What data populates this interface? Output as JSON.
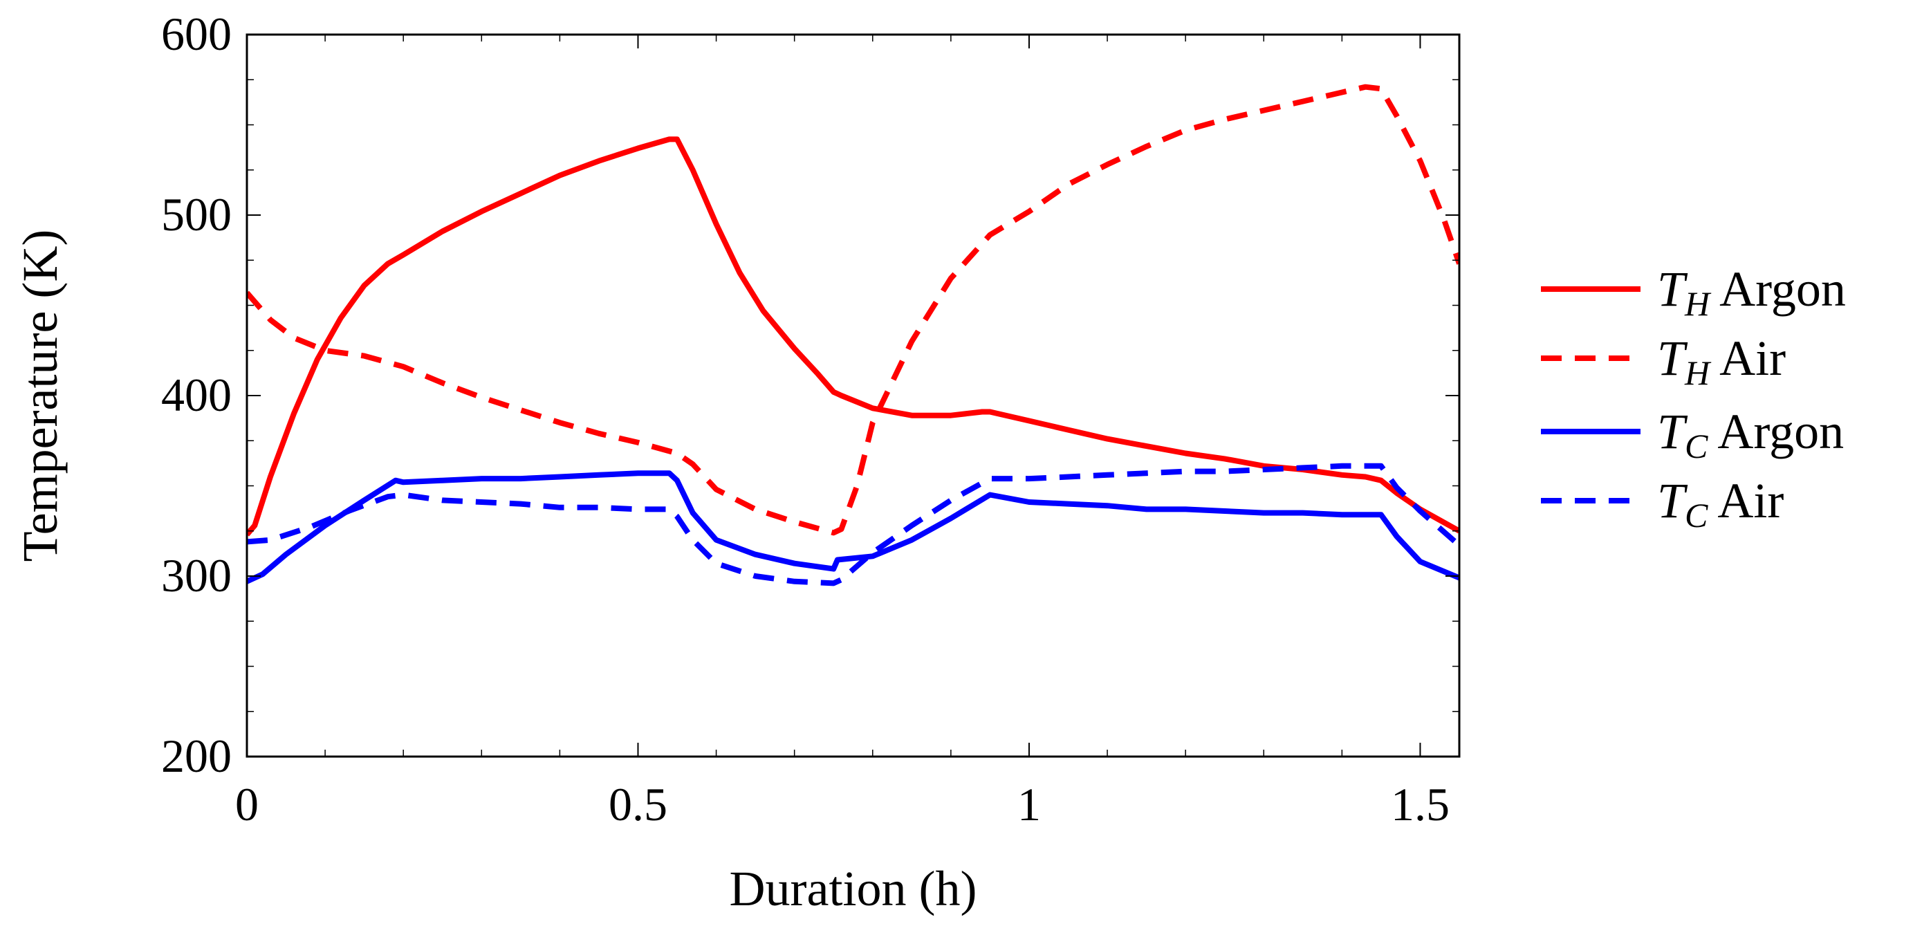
{
  "chart_data": {
    "type": "line",
    "title": "",
    "xlabel": "Duration (h)",
    "ylabel": "Temperature (K)",
    "xlim": [
      0,
      1.55
    ],
    "ylim": [
      200,
      600
    ],
    "x_ticks": [
      0,
      0.5,
      1,
      1.5
    ],
    "x_tick_labels": [
      "0",
      "0.5",
      "1",
      "1.5"
    ],
    "y_ticks": [
      200,
      300,
      400,
      500,
      600
    ],
    "y_tick_labels": [
      "200",
      "300",
      "400",
      "500",
      "600"
    ],
    "grid": false,
    "legend_position": "right",
    "series": [
      {
        "name": "T_H Argon",
        "legend_symbol": "T",
        "legend_subscript": "H",
        "legend_text": "Argon",
        "color": "#ff0000",
        "dash": "solid",
        "points": [
          [
            0,
            323
          ],
          [
            0.01,
            328
          ],
          [
            0.03,
            355
          ],
          [
            0.06,
            390
          ],
          [
            0.09,
            420
          ],
          [
            0.12,
            443
          ],
          [
            0.15,
            461
          ],
          [
            0.18,
            473
          ],
          [
            0.2,
            478
          ],
          [
            0.25,
            491
          ],
          [
            0.3,
            502
          ],
          [
            0.35,
            512
          ],
          [
            0.4,
            522
          ],
          [
            0.45,
            530
          ],
          [
            0.5,
            537
          ],
          [
            0.54,
            542
          ],
          [
            0.55,
            542
          ],
          [
            0.57,
            525
          ],
          [
            0.6,
            495
          ],
          [
            0.63,
            468
          ],
          [
            0.66,
            447
          ],
          [
            0.7,
            426
          ],
          [
            0.73,
            412
          ],
          [
            0.75,
            402
          ],
          [
            0.755,
            401
          ],
          [
            0.76,
            400
          ],
          [
            0.8,
            393
          ],
          [
            0.85,
            389
          ],
          [
            0.9,
            389
          ],
          [
            0.94,
            391
          ],
          [
            0.95,
            391
          ],
          [
            1,
            386
          ],
          [
            1.05,
            381
          ],
          [
            1.1,
            376
          ],
          [
            1.15,
            372
          ],
          [
            1.2,
            368
          ],
          [
            1.25,
            365
          ],
          [
            1.3,
            361
          ],
          [
            1.35,
            359
          ],
          [
            1.4,
            356
          ],
          [
            1.43,
            355
          ],
          [
            1.45,
            353
          ],
          [
            1.47,
            346
          ],
          [
            1.5,
            337
          ],
          [
            1.55,
            325
          ]
        ]
      },
      {
        "name": "T_H Air",
        "legend_symbol": "T",
        "legend_subscript": "H",
        "legend_text": "Air",
        "color": "#ff0000",
        "dash": "dashed",
        "points": [
          [
            0,
            457
          ],
          [
            0.03,
            442
          ],
          [
            0.06,
            432
          ],
          [
            0.1,
            425
          ],
          [
            0.15,
            422
          ],
          [
            0.2,
            416
          ],
          [
            0.25,
            407
          ],
          [
            0.3,
            399
          ],
          [
            0.35,
            392
          ],
          [
            0.4,
            385
          ],
          [
            0.45,
            379
          ],
          [
            0.5,
            374
          ],
          [
            0.55,
            368
          ],
          [
            0.57,
            362
          ],
          [
            0.6,
            348
          ],
          [
            0.65,
            337
          ],
          [
            0.7,
            330
          ],
          [
            0.75,
            324
          ],
          [
            0.76,
            326
          ],
          [
            0.78,
            350
          ],
          [
            0.8,
            385
          ],
          [
            0.85,
            430
          ],
          [
            0.9,
            465
          ],
          [
            0.95,
            489
          ],
          [
            1,
            502
          ],
          [
            1.05,
            517
          ],
          [
            1.1,
            528
          ],
          [
            1.15,
            538
          ],
          [
            1.2,
            547
          ],
          [
            1.25,
            553
          ],
          [
            1.3,
            558
          ],
          [
            1.35,
            563
          ],
          [
            1.4,
            568
          ],
          [
            1.43,
            571
          ],
          [
            1.45,
            570
          ],
          [
            1.47,
            555
          ],
          [
            1.5,
            530
          ],
          [
            1.53,
            498
          ],
          [
            1.55,
            473
          ]
        ]
      },
      {
        "name": "T_C Argon",
        "legend_symbol": "T",
        "legend_subscript": "C",
        "legend_text": "Argon",
        "color": "#0000ff",
        "dash": "solid",
        "points": [
          [
            0,
            297
          ],
          [
            0.02,
            301
          ],
          [
            0.05,
            312
          ],
          [
            0.1,
            328
          ],
          [
            0.15,
            342
          ],
          [
            0.19,
            353
          ],
          [
            0.2,
            352
          ],
          [
            0.25,
            353
          ],
          [
            0.3,
            354
          ],
          [
            0.35,
            354
          ],
          [
            0.4,
            355
          ],
          [
            0.45,
            356
          ],
          [
            0.5,
            357
          ],
          [
            0.54,
            357
          ],
          [
            0.55,
            353
          ],
          [
            0.57,
            335
          ],
          [
            0.6,
            320
          ],
          [
            0.65,
            312
          ],
          [
            0.7,
            307
          ],
          [
            0.75,
            304
          ],
          [
            0.755,
            309
          ],
          [
            0.8,
            311
          ],
          [
            0.85,
            320
          ],
          [
            0.9,
            332
          ],
          [
            0.95,
            345
          ],
          [
            1,
            341
          ],
          [
            1.05,
            340
          ],
          [
            1.1,
            339
          ],
          [
            1.15,
            337
          ],
          [
            1.2,
            337
          ],
          [
            1.25,
            336
          ],
          [
            1.3,
            335
          ],
          [
            1.35,
            335
          ],
          [
            1.4,
            334
          ],
          [
            1.45,
            334
          ],
          [
            1.47,
            322
          ],
          [
            1.5,
            308
          ],
          [
            1.55,
            299
          ]
        ]
      },
      {
        "name": "T_C Air",
        "legend_symbol": "T",
        "legend_subscript": "C",
        "legend_text": "Air",
        "color": "#0000ff",
        "dash": "dashed",
        "points": [
          [
            0,
            319
          ],
          [
            0.03,
            320
          ],
          [
            0.08,
            327
          ],
          [
            0.13,
            336
          ],
          [
            0.18,
            344
          ],
          [
            0.2,
            345
          ],
          [
            0.25,
            342
          ],
          [
            0.3,
            341
          ],
          [
            0.35,
            340
          ],
          [
            0.4,
            338
          ],
          [
            0.45,
            338
          ],
          [
            0.5,
            337
          ],
          [
            0.54,
            337
          ],
          [
            0.55,
            333
          ],
          [
            0.57,
            320
          ],
          [
            0.6,
            307
          ],
          [
            0.65,
            300
          ],
          [
            0.7,
            297
          ],
          [
            0.75,
            296
          ],
          [
            0.76,
            298
          ],
          [
            0.8,
            313
          ],
          [
            0.85,
            328
          ],
          [
            0.9,
            342
          ],
          [
            0.95,
            354
          ],
          [
            1,
            354
          ],
          [
            1.05,
            355
          ],
          [
            1.1,
            356
          ],
          [
            1.15,
            357
          ],
          [
            1.2,
            358
          ],
          [
            1.25,
            358
          ],
          [
            1.3,
            359
          ],
          [
            1.35,
            360
          ],
          [
            1.4,
            361
          ],
          [
            1.45,
            361
          ],
          [
            1.47,
            349
          ],
          [
            1.5,
            336
          ],
          [
            1.55,
            317
          ]
        ]
      }
    ]
  }
}
